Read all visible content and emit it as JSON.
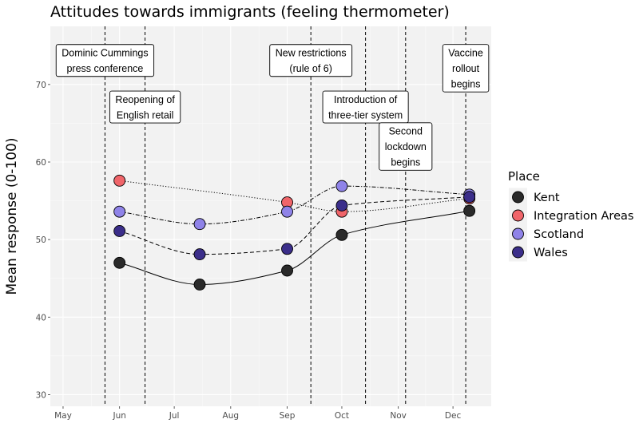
{
  "chart_data": {
    "type": "line",
    "title": "Attitudes towards immigrants (feeling thermometer)",
    "xlabel": "",
    "ylabel": "Mean response (0-100)",
    "x_tick_labels": [
      "May",
      "Jun",
      "Jul",
      "Aug",
      "Sep",
      "Oct",
      "Nov",
      "Dec"
    ],
    "x_ticks": [
      "2020-05-01",
      "2020-06-01",
      "2020-07-01",
      "2020-08-01",
      "2020-09-01",
      "2020-10-01",
      "2020-11-01",
      "2020-12-01"
    ],
    "x_range": [
      "2020-04-24",
      "2020-12-22"
    ],
    "y_ticks": [
      30,
      40,
      50,
      60,
      70
    ],
    "ylim": [
      28.5,
      77.5
    ],
    "grid": true,
    "background_color": "#f2f2f2",
    "legend_title": "Place",
    "legend_position": "right",
    "series": [
      {
        "name": "Kent",
        "color": "#2a2a2a",
        "line_style": "solid",
        "points": [
          {
            "x": "2020-06-01",
            "y": 47.0
          },
          {
            "x": "2020-07-15",
            "y": 44.2
          },
          {
            "x": "2020-09-01",
            "y": 46.0
          },
          {
            "x": "2020-10-01",
            "y": 50.6
          },
          {
            "x": "2020-12-10",
            "y": 53.7
          }
        ]
      },
      {
        "name": "Integration Areas",
        "color": "#f0656a",
        "line_style": "dotted",
        "points": [
          {
            "x": "2020-06-01",
            "y": 57.6
          },
          {
            "x": "2020-09-01",
            "y": 54.8
          },
          {
            "x": "2020-10-01",
            "y": 53.6
          },
          {
            "x": "2020-12-10",
            "y": 55.3
          }
        ]
      },
      {
        "name": "Scotland",
        "color": "#8f83e8",
        "line_style": "dotdash",
        "points": [
          {
            "x": "2020-06-01",
            "y": 53.6
          },
          {
            "x": "2020-07-15",
            "y": 52.0
          },
          {
            "x": "2020-09-01",
            "y": 53.6
          },
          {
            "x": "2020-10-01",
            "y": 56.9
          },
          {
            "x": "2020-12-10",
            "y": 55.8
          }
        ]
      },
      {
        "name": "Wales",
        "color": "#3b2e8a",
        "line_style": "dashed",
        "points": [
          {
            "x": "2020-06-01",
            "y": 51.1
          },
          {
            "x": "2020-07-15",
            "y": 48.1
          },
          {
            "x": "2020-09-01",
            "y": 48.8
          },
          {
            "x": "2020-10-01",
            "y": 54.4
          },
          {
            "x": "2020-12-10",
            "y": 55.5
          }
        ]
      }
    ],
    "annotations": [
      {
        "date": "2020-05-24",
        "text": [
          "Dominic Cummings",
          "press conference"
        ],
        "label_y": 73.1
      },
      {
        "date": "2020-06-15",
        "text": [
          "Reopening of",
          "English retail"
        ],
        "label_y": 67.1
      },
      {
        "date": "2020-09-14",
        "text": [
          "New restrictions",
          "(rule of 6)"
        ],
        "label_y": 73.1
      },
      {
        "date": "2020-10-14",
        "text": [
          "Introduction of",
          "three-tier system"
        ],
        "label_y": 67.1
      },
      {
        "date": "2020-11-05",
        "text": [
          "Second",
          "lockdown",
          "begins"
        ],
        "label_y": 62.0
      },
      {
        "date": "2020-12-08",
        "text": [
          "Vaccine",
          "rollout",
          "begins"
        ],
        "label_y": 72.1
      }
    ]
  }
}
